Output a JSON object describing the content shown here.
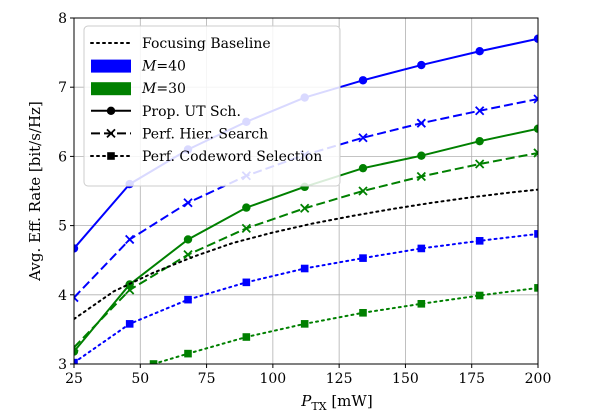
{
  "chart_data": {
    "type": "line",
    "xlabel": "P_TX [mW]",
    "xlabel_main": "P",
    "xlabel_sub": "TX",
    "xlabel_unit": " [mW]",
    "ylabel": "Avg. Eff. Rate [bit/s/Hz]",
    "xlim": [
      25,
      200
    ],
    "ylim": [
      3,
      8
    ],
    "xticks": [
      25,
      50,
      75,
      100,
      125,
      150,
      175,
      200
    ],
    "yticks": [
      3,
      4,
      5,
      6,
      7,
      8
    ],
    "grid": true,
    "legend_position": "upper left",
    "legend": [
      {
        "label": "Focusing Baseline",
        "style": "dotted",
        "marker": "none",
        "color": "#000000"
      },
      {
        "label_main": "M",
        "label_rest": "=40",
        "style": "patch",
        "color": "#0000ff"
      },
      {
        "label_main": "M",
        "label_rest": "=30",
        "style": "patch",
        "color": "#008000"
      },
      {
        "label": "Prop. UT Sch.",
        "style": "solid",
        "marker": "circle",
        "color": "#000000"
      },
      {
        "label": "Perf. Hier. Search",
        "style": "dashed",
        "marker": "x",
        "color": "#000000"
      },
      {
        "label": "Perf. Codeword Selection",
        "style": "dotted",
        "marker": "square",
        "color": "#000000"
      }
    ],
    "series": [
      {
        "group": "M=40",
        "scheme": "Prop. UT Sch.",
        "style": "solid",
        "marker": "circle",
        "color": "#0000ff",
        "x": [
          25,
          46,
          68,
          90,
          112,
          134,
          156,
          178,
          200
        ],
        "y": [
          4.67,
          5.6,
          6.1,
          6.5,
          6.85,
          7.1,
          7.32,
          7.52,
          7.7
        ]
      },
      {
        "group": "M=40",
        "scheme": "Perf. Hier. Search",
        "style": "dashed",
        "marker": "x",
        "color": "#0000ff",
        "x": [
          25,
          46,
          68,
          90,
          112,
          134,
          156,
          178,
          200
        ],
        "y": [
          3.96,
          4.8,
          5.33,
          5.72,
          6.02,
          6.27,
          6.48,
          6.66,
          6.83
        ]
      },
      {
        "group": "M=40",
        "scheme": "Perf. Codeword Selection",
        "style": "dotted",
        "marker": "square",
        "color": "#0000ff",
        "x": [
          25,
          46,
          68,
          90,
          112,
          134,
          156,
          178,
          200
        ],
        "y": [
          3.02,
          3.58,
          3.93,
          4.18,
          4.38,
          4.53,
          4.67,
          4.78,
          4.88
        ]
      },
      {
        "group": "M=30",
        "scheme": "Prop. UT Sch.",
        "style": "solid",
        "marker": "circle",
        "color": "#008000",
        "x": [
          25,
          46,
          68,
          90,
          112,
          134,
          156,
          178,
          200
        ],
        "y": [
          3.18,
          4.15,
          4.8,
          5.26,
          5.56,
          5.83,
          6.01,
          6.22,
          6.4
        ]
      },
      {
        "group": "M=30",
        "scheme": "Perf. Hier. Search",
        "style": "dashed",
        "marker": "x",
        "color": "#008000",
        "x": [
          25,
          46,
          68,
          90,
          112,
          134,
          156,
          178,
          200
        ],
        "y": [
          3.24,
          4.07,
          4.58,
          4.96,
          5.25,
          5.5,
          5.71,
          5.89,
          6.05
        ]
      },
      {
        "group": "M=30",
        "scheme": "Perf. Codeword Selection",
        "style": "dotted",
        "marker": "square",
        "color": "#008000",
        "x": [
          55,
          68,
          90,
          112,
          134,
          156,
          178,
          200
        ],
        "y": [
          3.0,
          3.15,
          3.39,
          3.58,
          3.74,
          3.87,
          3.99,
          4.1
        ]
      },
      {
        "group": "baseline",
        "scheme": "Focusing Baseline",
        "style": "dotted",
        "marker": "none",
        "color": "#000000",
        "x": [
          25,
          40,
          55,
          70,
          85,
          100,
          115,
          130,
          145,
          160,
          175,
          190,
          200
        ],
        "y": [
          3.65,
          4.05,
          4.32,
          4.55,
          4.75,
          4.9,
          5.03,
          5.14,
          5.24,
          5.33,
          5.41,
          5.48,
          5.52
        ]
      }
    ]
  }
}
